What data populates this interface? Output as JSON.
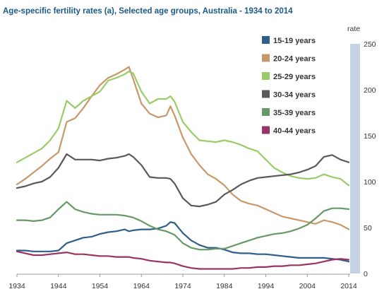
{
  "chart_data": {
    "type": "line",
    "title": "Age-specific fertility rates (a), Selected age groups, Australia - 1934 to 2014",
    "xlabel": "",
    "ylabel": "rate",
    "xlim": [
      1934,
      2014
    ],
    "ylim": [
      0,
      250
    ],
    "x_ticks": [
      1934,
      1944,
      1954,
      1964,
      1974,
      1984,
      1994,
      2004,
      2014
    ],
    "y_ticks": [
      0,
      50,
      100,
      150,
      200,
      250
    ],
    "legend_position": "right",
    "grid": false,
    "x": [
      1934,
      1936,
      1938,
      1940,
      1942,
      1944,
      1946,
      1948,
      1950,
      1952,
      1954,
      1956,
      1958,
      1960,
      1961,
      1962,
      1964,
      1966,
      1968,
      1970,
      1971,
      1972,
      1974,
      1976,
      1978,
      1980,
      1982,
      1984,
      1986,
      1988,
      1990,
      1992,
      1994,
      1996,
      1998,
      2000,
      2002,
      2004,
      2006,
      2008,
      2010,
      2012,
      2014
    ],
    "series": [
      {
        "name": "15-19 years",
        "color": "#2e5f8a",
        "values": [
          25,
          25,
          24,
          24,
          24,
          25,
          33,
          36,
          39,
          40,
          43,
          45,
          46,
          48,
          46,
          47,
          48,
          48,
          49,
          52,
          56,
          55,
          44,
          36,
          31,
          28,
          28,
          26,
          23,
          22,
          22,
          21,
          21,
          20,
          19,
          18,
          17,
          17,
          17,
          17,
          16,
          15,
          13
        ]
      },
      {
        "name": "20-24 years",
        "color": "#c8986a",
        "values": [
          97,
          103,
          110,
          117,
          125,
          132,
          165,
          169,
          180,
          193,
          205,
          213,
          217,
          222,
          225,
          212,
          185,
          174,
          170,
          172,
          182,
          172,
          148,
          130,
          118,
          108,
          103,
          96,
          86,
          79,
          76,
          74,
          70,
          66,
          62,
          60,
          58,
          56,
          54,
          58,
          56,
          53,
          48
        ]
      },
      {
        "name": "25-29 years",
        "color": "#99cc66",
        "values": [
          121,
          126,
          131,
          136,
          145,
          158,
          188,
          180,
          188,
          193,
          198,
          210,
          213,
          217,
          220,
          218,
          198,
          185,
          190,
          190,
          193,
          187,
          165,
          154,
          145,
          144,
          143,
          145,
          143,
          140,
          136,
          133,
          124,
          115,
          110,
          106,
          104,
          103,
          104,
          108,
          105,
          103,
          96
        ]
      },
      {
        "name": "30-34 years",
        "color": "#595959",
        "values": [
          93,
          95,
          98,
          100,
          105,
          115,
          130,
          124,
          124,
          124,
          123,
          125,
          126,
          128,
          130,
          127,
          118,
          105,
          104,
          104,
          103,
          98,
          82,
          74,
          73,
          75,
          78,
          86,
          91,
          97,
          101,
          104,
          105,
          106,
          107,
          108,
          110,
          113,
          117,
          127,
          129,
          124,
          121
        ]
      },
      {
        "name": "35-39 years",
        "color": "#669966",
        "values": [
          58,
          58,
          57,
          58,
          61,
          70,
          78,
          70,
          67,
          65,
          64,
          64,
          64,
          63,
          62,
          61,
          57,
          52,
          48,
          46,
          44,
          42,
          33,
          28,
          26,
          26,
          27,
          27,
          30,
          33,
          36,
          39,
          41,
          43,
          44,
          46,
          49,
          53,
          60,
          68,
          71,
          71,
          70
        ]
      },
      {
        "name": "40-44 years",
        "color": "#993366",
        "values": [
          24,
          22,
          20,
          20,
          21,
          22,
          23,
          21,
          21,
          20,
          19,
          19,
          18,
          18,
          18,
          17,
          16,
          14,
          13,
          12,
          12,
          11,
          8,
          6,
          5,
          5,
          5,
          5,
          5,
          6,
          6,
          7,
          7,
          8,
          8,
          9,
          9,
          10,
          11,
          13,
          15,
          16,
          15
        ]
      }
    ]
  }
}
